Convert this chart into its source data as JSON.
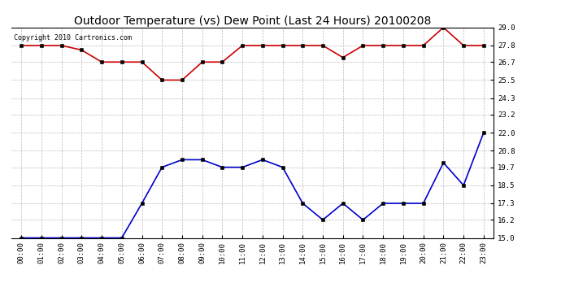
{
  "title": "Outdoor Temperature (vs) Dew Point (Last 24 Hours) 20100208",
  "copyright": "Copyright 2010 Cartronics.com",
  "x_labels": [
    "00:00",
    "01:00",
    "02:00",
    "03:00",
    "04:00",
    "05:00",
    "06:00",
    "07:00",
    "08:00",
    "09:00",
    "10:00",
    "11:00",
    "12:00",
    "13:00",
    "14:00",
    "15:00",
    "16:00",
    "17:00",
    "18:00",
    "19:00",
    "20:00",
    "21:00",
    "22:00",
    "23:00"
  ],
  "temp_values": [
    27.8,
    27.8,
    27.8,
    27.5,
    26.7,
    26.7,
    26.7,
    25.5,
    25.5,
    26.7,
    26.7,
    27.8,
    27.8,
    27.8,
    27.8,
    27.8,
    27.0,
    27.8,
    27.8,
    27.8,
    27.8,
    29.0,
    27.8,
    27.8
  ],
  "dew_values": [
    15.0,
    15.0,
    15.0,
    15.0,
    15.0,
    15.0,
    17.3,
    19.7,
    20.2,
    20.2,
    19.7,
    19.7,
    20.2,
    19.7,
    17.3,
    16.2,
    17.3,
    16.2,
    17.3,
    17.3,
    17.3,
    20.0,
    18.5,
    22.0
  ],
  "temp_color": "#cc0000",
  "dew_color": "#0000cc",
  "bg_color": "#ffffff",
  "grid_color": "#bbbbbb",
  "ylim_min": 15.0,
  "ylim_max": 29.0,
  "yticks": [
    15.0,
    16.2,
    17.3,
    18.5,
    19.7,
    20.8,
    22.0,
    23.2,
    24.3,
    25.5,
    26.7,
    27.8,
    29.0
  ],
  "title_fontsize": 10,
  "copyright_fontsize": 6,
  "tick_fontsize": 6.5,
  "marker": "s",
  "marker_size": 2.5,
  "linewidth": 1.2
}
